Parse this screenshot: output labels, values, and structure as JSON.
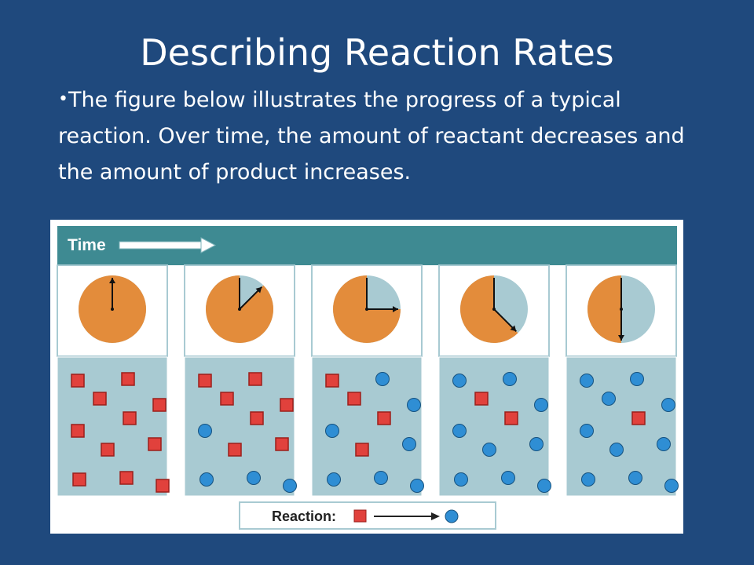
{
  "slide": {
    "title": "Describing Reaction Rates",
    "bullet_marker": "•",
    "bullet_text": "The figure below illustrates the progress of a typical reaction. Over time, the amount of reactant decreases and the amount of product increases."
  },
  "figure": {
    "time_label": "Time",
    "legend_label": "Reaction:",
    "colors": {
      "banner": "#3e8a92",
      "clock_elapsed": "#e38c3b",
      "clock_remaining": "#a8cad2",
      "container": "#a8cad2",
      "reactant": "#e1413c",
      "product": "#2f8ed4"
    },
    "panels": [
      {
        "clock_fraction": 0.0,
        "reactants": 11,
        "products": 0
      },
      {
        "clock_fraction": 0.125,
        "reactants": 7,
        "products": 4
      },
      {
        "clock_fraction": 0.25,
        "reactants": 4,
        "products": 7
      },
      {
        "clock_fraction": 0.375,
        "reactants": 2,
        "products": 9
      },
      {
        "clock_fraction": 0.5,
        "reactants": 1,
        "products": 10
      }
    ]
  }
}
